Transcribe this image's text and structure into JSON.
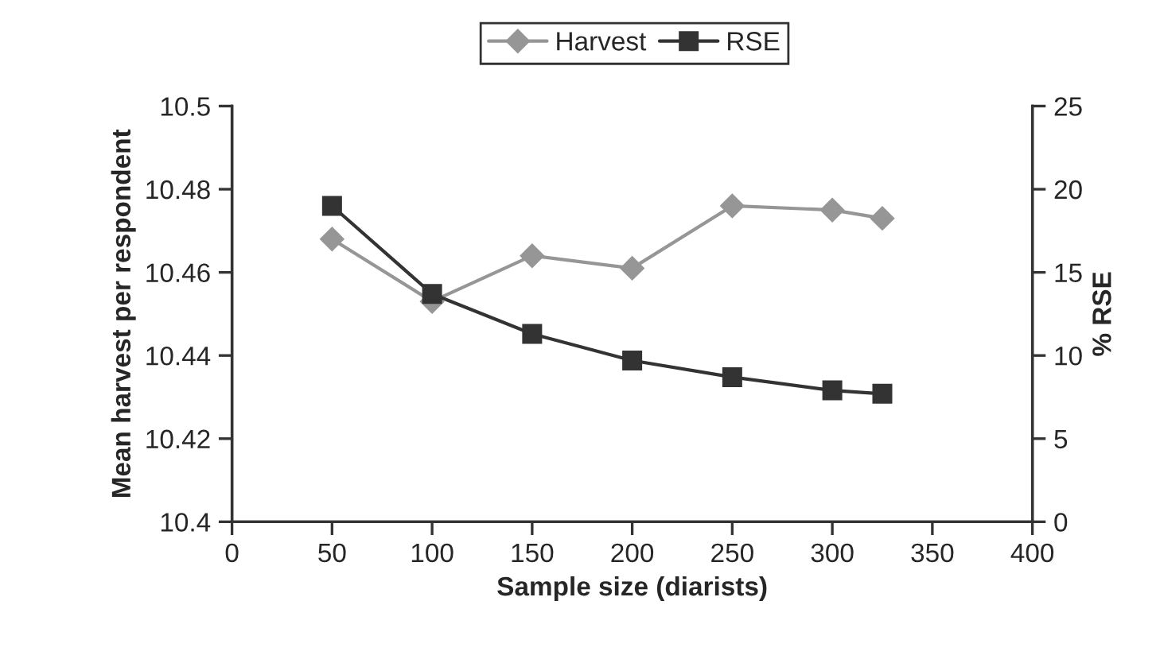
{
  "chart_data": {
    "type": "line",
    "xlabel": "Sample size (diarists)",
    "ylabel": "Mean harvest per respondent",
    "y2label": "% RSE",
    "x": [
      50,
      100,
      150,
      200,
      250,
      300,
      325
    ],
    "series": [
      {
        "name": "Harvest",
        "color": "#969696",
        "marker": "diamond",
        "values": [
          10.468,
          10.453,
          10.464,
          10.461,
          10.476,
          10.475,
          10.473
        ]
      },
      {
        "name": "RSE",
        "color": "#333333",
        "marker": "square",
        "axis": "y2",
        "values": [
          19.0,
          13.7,
          11.3,
          9.7,
          8.7,
          7.9,
          7.7
        ]
      }
    ],
    "xlim": [
      0,
      400
    ],
    "xticks": [
      0,
      50,
      100,
      150,
      200,
      250,
      300,
      350,
      400
    ],
    "ylim": [
      10.4,
      10.5
    ],
    "yticks": [
      {
        "value": 10.4,
        "label": "10.4"
      },
      {
        "value": 10.42,
        "label": "10.42"
      },
      {
        "value": 10.44,
        "label": "10.44"
      },
      {
        "value": 10.46,
        "label": "10.46"
      },
      {
        "value": 10.48,
        "label": "10.48"
      },
      {
        "value": 10.5,
        "label": "10.5"
      }
    ],
    "y2lim": [
      0,
      25
    ],
    "y2ticks": [
      0,
      5,
      10,
      15,
      20,
      25
    ],
    "grid": false,
    "legend": "top",
    "line_style": "solid"
  }
}
